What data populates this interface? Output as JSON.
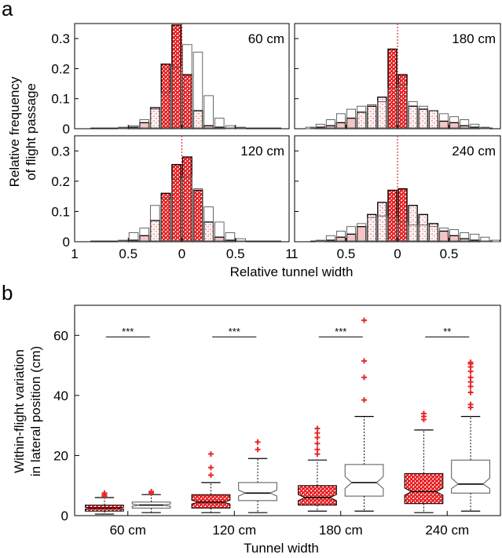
{
  "panel_a": {
    "letter": "a",
    "ylabel_line1": "Relative frequency",
    "ylabel_line2": "of flight passage",
    "xlabel": "Relative tunnel width",
    "xtick_labels": [
      "1",
      "0.5",
      "0",
      "0.5",
      "1"
    ],
    "ytick_labels": [
      "0",
      "0.1",
      "0.2",
      "0.3"
    ]
  },
  "panel_b": {
    "letter": "b",
    "ylabel_line1": "Within-flight variation",
    "ylabel_line2": "in lateral position (cm)",
    "xlabel": "Tunnel width",
    "ytick_labels": [
      "0",
      "20",
      "40",
      "60"
    ]
  },
  "colors": {
    "red": "#e8282b",
    "light_red": "#f6c4c4",
    "axis": "#000000",
    "outline": "#555555"
  },
  "chart_data": [
    {
      "type": "bar",
      "title": "60 cm",
      "x": [
        -0.95,
        -0.85,
        -0.75,
        -0.65,
        -0.55,
        -0.45,
        -0.35,
        -0.25,
        -0.15,
        -0.05,
        0.05,
        0.15,
        0.25,
        0.35,
        0.45,
        0.55,
        0.65,
        0.75,
        0.85,
        0.95
      ],
      "series": [
        {
          "values": [
            0,
            0,
            0,
            0,
            0,
            0.005,
            0.02,
            0.07,
            0.215,
            0.345,
            0.18,
            0.06,
            0.01,
            0.005,
            0,
            0,
            0,
            0,
            0,
            0
          ]
        },
        {
          "values": [
            0,
            0,
            0,
            0,
            0.005,
            0.01,
            0.03,
            0.065,
            0.12,
            0.205,
            0.28,
            0.255,
            0.11,
            0.035,
            0.01,
            0.005,
            0,
            0,
            0,
            0
          ]
        }
      ],
      "ylim": [
        0,
        0.35
      ],
      "xlim": [
        -1,
        1
      ]
    },
    {
      "type": "bar",
      "title": "180 cm",
      "x": [
        -0.95,
        -0.85,
        -0.75,
        -0.65,
        -0.55,
        -0.45,
        -0.35,
        -0.25,
        -0.15,
        -0.05,
        0.05,
        0.15,
        0.25,
        0.35,
        0.45,
        0.55,
        0.65,
        0.75,
        0.85,
        0.95
      ],
      "series": [
        {
          "values": [
            0,
            0,
            0.005,
            0.01,
            0.02,
            0.035,
            0.055,
            0.075,
            0.105,
            0.265,
            0.18,
            0.075,
            0.065,
            0.06,
            0.025,
            0.02,
            0.01,
            0.005,
            0,
            0
          ]
        },
        {
          "values": [
            0,
            0.005,
            0.015,
            0.03,
            0.05,
            0.065,
            0.075,
            0.08,
            0.09,
            0.135,
            0.145,
            0.09,
            0.075,
            0.06,
            0.05,
            0.04,
            0.03,
            0.015,
            0.005,
            0
          ]
        }
      ],
      "ylim": [
        0,
        0.35
      ],
      "xlim": [
        -1,
        1
      ]
    },
    {
      "type": "bar",
      "title": "120 cm",
      "x": [
        -0.95,
        -0.85,
        -0.75,
        -0.65,
        -0.55,
        -0.45,
        -0.35,
        -0.25,
        -0.15,
        -0.05,
        0.05,
        0.15,
        0.25,
        0.35,
        0.45,
        0.55,
        0.65,
        0.75,
        0.85,
        0.95
      ],
      "series": [
        {
          "values": [
            0,
            0,
            0,
            0,
            0,
            0.005,
            0.02,
            0.07,
            0.16,
            0.255,
            0.28,
            0.17,
            0.065,
            0.015,
            0.005,
            0,
            0,
            0,
            0,
            0
          ]
        },
        {
          "values": [
            0,
            0,
            0,
            0,
            0.005,
            0.03,
            0.045,
            0.12,
            0.14,
            0.205,
            0.215,
            0.175,
            0.115,
            0.065,
            0.03,
            0.01,
            0,
            0,
            0,
            0
          ]
        }
      ],
      "ylim": [
        0,
        0.35
      ],
      "xlim": [
        -1,
        1
      ]
    },
    {
      "type": "bar",
      "title": "240 cm",
      "x": [
        -0.95,
        -0.85,
        -0.75,
        -0.65,
        -0.55,
        -0.45,
        -0.35,
        -0.25,
        -0.15,
        -0.05,
        0.05,
        0.15,
        0.25,
        0.35,
        0.45,
        0.55,
        0.65,
        0.75,
        0.85,
        0.95
      ],
      "series": [
        {
          "values": [
            0,
            0,
            0,
            0.005,
            0.015,
            0.025,
            0.05,
            0.09,
            0.13,
            0.17,
            0.175,
            0.12,
            0.09,
            0.06,
            0.035,
            0.02,
            0.01,
            0.005,
            0,
            0
          ]
        },
        {
          "values": [
            0,
            0,
            0.005,
            0.02,
            0.035,
            0.05,
            0.06,
            0.08,
            0.085,
            0.08,
            0.065,
            0.055,
            0.055,
            0.05,
            0.045,
            0.04,
            0.03,
            0.025,
            0.015,
            0.005
          ]
        }
      ],
      "ylim": [
        0,
        0.35
      ],
      "xlim": [
        -1,
        1
      ]
    },
    {
      "type": "box",
      "categories": [
        "60 cm",
        "120 cm",
        "180 cm",
        "240 cm"
      ],
      "ylim": [
        0,
        70
      ],
      "series": [
        {
          "boxes": [
            {
              "whislo": 0.5,
              "q1": 1.5,
              "med": 2.5,
              "q3": 3.5,
              "whishi": 6,
              "notch_lo": 2.2,
              "notch_hi": 2.8,
              "fliers": [
                6.5,
                7,
                7.5
              ]
            },
            {
              "whislo": 1,
              "q1": 2.5,
              "med": 4.5,
              "q3": 7,
              "whishi": 11,
              "notch_lo": 3.9,
              "notch_hi": 5.1,
              "fliers": [
                13.5,
                16,
                20.5
              ]
            },
            {
              "whislo": 1.5,
              "q1": 3.5,
              "med": 6,
              "q3": 10,
              "whishi": 18.5,
              "notch_lo": 5,
              "notch_hi": 7,
              "fliers": [
                20.5,
                22,
                24,
                26,
                27.5,
                29
              ]
            },
            {
              "whislo": 1,
              "q1": 4,
              "med": 8,
              "q3": 14,
              "whishi": 28.5,
              "notch_lo": 6.8,
              "notch_hi": 9.2,
              "fliers": [
                32,
                33,
                34
              ]
            }
          ]
        },
        {
          "boxes": [
            {
              "whislo": 1,
              "q1": 2.5,
              "med": 3.5,
              "q3": 4.5,
              "whishi": 7,
              "notch_lo": 3.1,
              "notch_hi": 3.9,
              "fliers": [
                7.5,
                8
              ]
            },
            {
              "whislo": 1,
              "q1": 5,
              "med": 7.5,
              "q3": 11,
              "whishi": 19,
              "notch_lo": 6.5,
              "notch_hi": 8.5,
              "fliers": [
                22,
                24.5
              ]
            },
            {
              "whislo": 1.5,
              "q1": 6.5,
              "med": 11,
              "q3": 17,
              "whishi": 33,
              "notch_lo": 9,
              "notch_hi": 13,
              "fliers": [
                38.5,
                46,
                51.5,
                65
              ]
            },
            {
              "whislo": 1.5,
              "q1": 7.5,
              "med": 10.5,
              "q3": 18.5,
              "whishi": 33,
              "notch_lo": 9,
              "notch_hi": 12.5,
              "fliers": [
                36,
                37,
                41,
                43,
                44.5,
                46,
                48,
                49.5,
                50.5,
                51
              ]
            }
          ]
        }
      ],
      "significance": [
        "***",
        "***",
        "***",
        "**"
      ],
      "significance_y": 59.5
    }
  ]
}
